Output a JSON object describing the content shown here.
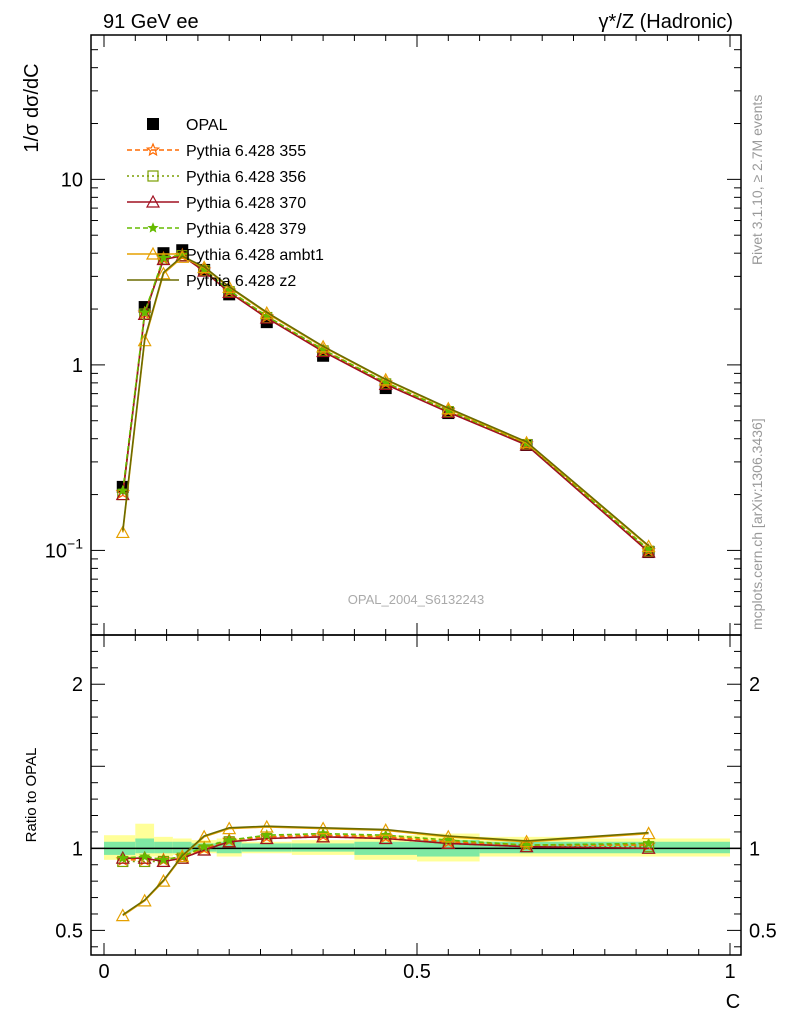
{
  "header": {
    "left": "91 GeV ee",
    "right": "γ*/Z (Hadronic)"
  },
  "side": {
    "rivet": "Rivet 3.1.10, ≥ 2.7M events",
    "source": "mcplots.cern.ch [arXiv:1306.3436]"
  },
  "watermark": "OPAL_2004_S6132243",
  "chart_data": [
    {
      "type": "line",
      "panel": "main",
      "ylabel": "1/σ dσ/dC",
      "xlabel": "C",
      "x_scale": "linear",
      "y_scale": "log",
      "xlim": [
        0,
        1
      ],
      "ylim": [
        0.035,
        60
      ],
      "x_ticks": [
        {
          "v": 0,
          "label": "0"
        },
        {
          "v": 0.5,
          "label": "0.5"
        },
        {
          "v": 1,
          "label": "1"
        }
      ],
      "y_ticks": [
        {
          "v": 0.1,
          "base": "10",
          "exp": "−1"
        },
        {
          "v": 1,
          "label": "1"
        },
        {
          "v": 10,
          "label": "10"
        }
      ],
      "legend_position": "top-left",
      "data": {
        "name": "OPAL",
        "color": "#000000",
        "x": [
          0.03,
          0.065,
          0.095,
          0.125,
          0.16,
          0.2,
          0.26,
          0.35,
          0.45,
          0.55,
          0.675,
          0.87
        ],
        "y": [
          0.22,
          2.05,
          4.0,
          4.15,
          3.25,
          2.4,
          1.7,
          1.12,
          0.75,
          0.55,
          0.37,
          0.098
        ]
      },
      "series": [
        {
          "name": "Pythia 6.428 355",
          "color": "#ff6a00",
          "dash": "5,3",
          "marker": "star",
          "x": [
            0.03,
            0.065,
            0.095,
            0.125,
            0.16,
            0.2,
            0.26,
            0.35,
            0.45,
            0.55,
            0.675,
            0.87
          ],
          "y": [
            0.205,
            1.9,
            3.75,
            3.9,
            3.25,
            2.5,
            1.82,
            1.2,
            0.8,
            0.565,
            0.375,
            0.1
          ]
        },
        {
          "name": "Pythia 6.428 356",
          "color": "#7a9e00",
          "dash": "2,3",
          "marker": "square",
          "x": [
            0.03,
            0.065,
            0.095,
            0.125,
            0.16,
            0.2,
            0.26,
            0.35,
            0.45,
            0.55,
            0.675,
            0.87
          ],
          "y": [
            0.2,
            1.88,
            3.72,
            3.88,
            3.22,
            2.48,
            1.8,
            1.19,
            0.79,
            0.56,
            0.372,
            0.099
          ]
        },
        {
          "name": "Pythia 6.428 370",
          "color": "#a01020",
          "dash": "",
          "marker": "triangle",
          "x": [
            0.03,
            0.065,
            0.095,
            0.125,
            0.16,
            0.2,
            0.26,
            0.35,
            0.45,
            0.55,
            0.675,
            0.87
          ],
          "y": [
            0.2,
            1.87,
            3.7,
            3.87,
            3.2,
            2.46,
            1.79,
            1.18,
            0.785,
            0.555,
            0.37,
            0.098
          ]
        },
        {
          "name": "Pythia 6.428 379",
          "color": "#66bb00",
          "dash": "5,3",
          "marker": "smallstar",
          "x": [
            0.03,
            0.065,
            0.095,
            0.125,
            0.16,
            0.2,
            0.26,
            0.35,
            0.45,
            0.55,
            0.675,
            0.87
          ],
          "y": [
            0.21,
            1.92,
            3.78,
            3.92,
            3.27,
            2.52,
            1.83,
            1.21,
            0.805,
            0.568,
            0.378,
            0.101
          ]
        },
        {
          "name": "Pythia 6.428 ambt1",
          "color": "#e6a000",
          "dash": "",
          "marker": "triangle",
          "x": [
            0.03,
            0.065,
            0.095,
            0.125,
            0.16,
            0.2,
            0.26,
            0.35,
            0.45,
            0.55,
            0.675,
            0.87
          ],
          "y": [
            0.125,
            1.35,
            3.1,
            3.8,
            3.35,
            2.62,
            1.9,
            1.25,
            0.83,
            0.58,
            0.38,
            0.105
          ]
        },
        {
          "name": "Pythia 6.428 z2",
          "color": "#6b6b00",
          "dash": "",
          "marker": "none",
          "x": [
            0.03,
            0.065,
            0.095,
            0.125,
            0.16,
            0.2,
            0.26,
            0.35,
            0.45,
            0.55,
            0.675,
            0.87
          ],
          "y": [
            0.128,
            1.38,
            3.15,
            3.85,
            3.38,
            2.64,
            1.92,
            1.26,
            0.835,
            0.585,
            0.385,
            0.106
          ]
        }
      ]
    },
    {
      "type": "line",
      "panel": "ratio",
      "ylabel": "Ratio to OPAL",
      "x_scale": "linear",
      "y_scale": "linear",
      "xlim": [
        0,
        1
      ],
      "ylim": [
        0.35,
        2.3
      ],
      "y_ticks": [
        {
          "v": 0.5,
          "label": "0.5"
        },
        {
          "v": 1,
          "label": "1"
        },
        {
          "v": 2,
          "label": "2"
        }
      ],
      "reference_line": 1,
      "uncertainty_bands": {
        "bin_edges": [
          0,
          0.05,
          0.08,
          0.11,
          0.14,
          0.18,
          0.22,
          0.3,
          0.4,
          0.5,
          0.6,
          0.75,
          1.0
        ],
        "outer_yellow": [
          [
            0.93,
            1.08
          ],
          [
            0.95,
            1.15
          ],
          [
            0.95,
            1.07
          ],
          [
            0.96,
            1.06
          ],
          [
            0.97,
            1.05
          ],
          [
            0.95,
            1.06
          ],
          [
            0.97,
            1.04
          ],
          [
            0.96,
            1.05
          ],
          [
            0.93,
            1.08
          ],
          [
            0.92,
            1.09
          ],
          [
            0.95,
            1.07
          ],
          [
            0.95,
            1.06
          ]
        ],
        "inner_green": [
          [
            0.96,
            1.04
          ],
          [
            0.97,
            1.06
          ],
          [
            0.97,
            1.04
          ],
          [
            0.97,
            1.04
          ],
          [
            0.98,
            1.03
          ],
          [
            0.97,
            1.04
          ],
          [
            0.98,
            1.03
          ],
          [
            0.98,
            1.03
          ],
          [
            0.96,
            1.04
          ],
          [
            0.95,
            1.05
          ],
          [
            0.97,
            1.04
          ],
          [
            0.97,
            1.04
          ]
        ]
      },
      "series": [
        {
          "name": "Pythia 6.428 355",
          "color": "#ff6a00",
          "dash": "5,3",
          "marker": "star",
          "x": [
            0.03,
            0.065,
            0.095,
            0.125,
            0.16,
            0.2,
            0.26,
            0.35,
            0.45,
            0.55,
            0.675,
            0.87
          ],
          "y": [
            0.93,
            0.93,
            0.93,
            0.95,
            1.0,
            1.05,
            1.07,
            1.08,
            1.07,
            1.04,
            1.02,
            1.02
          ]
        },
        {
          "name": "Pythia 6.428 356",
          "color": "#7a9e00",
          "dash": "2,3",
          "marker": "square",
          "x": [
            0.03,
            0.065,
            0.095,
            0.125,
            0.16,
            0.2,
            0.26,
            0.35,
            0.45,
            0.55,
            0.675,
            0.87
          ],
          "y": [
            0.92,
            0.92,
            0.92,
            0.94,
            0.99,
            1.04,
            1.06,
            1.07,
            1.06,
            1.03,
            1.01,
            1.01
          ]
        },
        {
          "name": "Pythia 6.428 370",
          "color": "#a01020",
          "dash": "",
          "marker": "triangle",
          "x": [
            0.03,
            0.065,
            0.095,
            0.125,
            0.16,
            0.2,
            0.26,
            0.35,
            0.45,
            0.55,
            0.675,
            0.87
          ],
          "y": [
            0.94,
            0.94,
            0.92,
            0.94,
            0.99,
            1.04,
            1.06,
            1.07,
            1.06,
            1.03,
            1.01,
            1.0
          ]
        },
        {
          "name": "Pythia 6.428 379",
          "color": "#66bb00",
          "dash": "5,3",
          "marker": "smallstar",
          "x": [
            0.03,
            0.065,
            0.095,
            0.125,
            0.16,
            0.2,
            0.26,
            0.35,
            0.45,
            0.55,
            0.675,
            0.87
          ],
          "y": [
            0.94,
            0.95,
            0.93,
            0.95,
            1.01,
            1.05,
            1.08,
            1.09,
            1.08,
            1.05,
            1.02,
            1.03
          ]
        },
        {
          "name": "Pythia 6.428 ambt1",
          "color": "#e6a000",
          "dash": "",
          "marker": "triangle",
          "x": [
            0.03,
            0.065,
            0.095,
            0.125,
            0.16,
            0.2,
            0.26,
            0.35,
            0.45,
            0.55,
            0.675,
            0.87
          ],
          "y": [
            0.59,
            0.68,
            0.8,
            0.95,
            1.07,
            1.12,
            1.13,
            1.12,
            1.11,
            1.07,
            1.04,
            1.09
          ]
        },
        {
          "name": "Pythia 6.428 z2",
          "color": "#6b6b00",
          "dash": "",
          "marker": "none",
          "x": [
            0.03,
            0.065,
            0.095,
            0.125,
            0.16,
            0.2,
            0.26,
            0.35,
            0.45,
            0.55,
            0.675,
            0.87
          ],
          "y": [
            0.595,
            0.685,
            0.805,
            0.955,
            1.075,
            1.125,
            1.135,
            1.125,
            1.115,
            1.075,
            1.045,
            1.095
          ]
        }
      ]
    }
  ]
}
